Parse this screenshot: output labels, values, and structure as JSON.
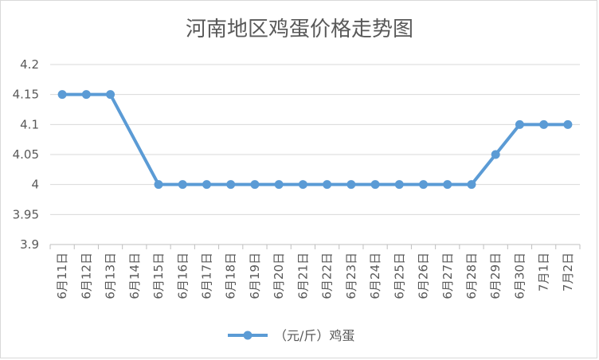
{
  "chart_data": {
    "type": "line",
    "title": "河南地区鸡蛋价格走势图",
    "xlabel": "",
    "ylabel": "",
    "categories": [
      "6月11日",
      "6月12日",
      "6月13日",
      "6月14日",
      "6月15日",
      "6月16日",
      "6月17日",
      "6月18日",
      "6月19日",
      "6月20日",
      "6月21日",
      "6月22日",
      "6月23日",
      "6月24日",
      "6月25日",
      "6月26日",
      "6月27日",
      "6月28日",
      "6月29日",
      "6月30日",
      "7月1日",
      "7月2日"
    ],
    "series": [
      {
        "name": "（元/斤）鸡蛋",
        "values": [
          4.15,
          4.15,
          4.15,
          null,
          4.0,
          4.0,
          4.0,
          4.0,
          4.0,
          4.0,
          4.0,
          4.0,
          4.0,
          4.0,
          4.0,
          4.0,
          4.0,
          4.0,
          4.05,
          4.1,
          4.1,
          4.1
        ],
        "color": "#5b9bd5"
      }
    ],
    "ylim": [
      3.9,
      4.2
    ],
    "yticks": [
      "3.9",
      "3.95",
      "4",
      "4.05",
      "4.1",
      "4.15",
      "4.2"
    ],
    "grid": true,
    "legend": "bottom"
  }
}
